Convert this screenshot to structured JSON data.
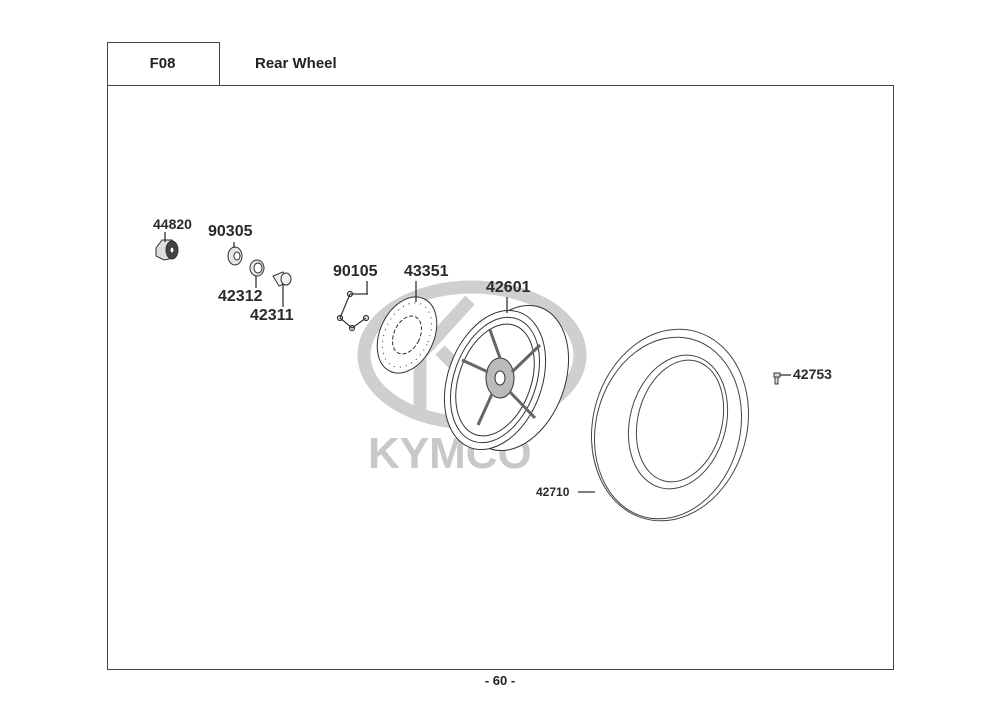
{
  "header": {
    "section_code": "F08",
    "title": "Rear Wheel"
  },
  "watermark": {
    "brand": "KYMCO",
    "color": "#c8c8c8"
  },
  "parts": [
    {
      "number": "44820"
    },
    {
      "number": "90305"
    },
    {
      "number": "42312"
    },
    {
      "number": "42311"
    },
    {
      "number": "90105"
    },
    {
      "number": "43351"
    },
    {
      "number": "42601"
    },
    {
      "number": "42753"
    },
    {
      "number": "42710"
    }
  ],
  "footer": {
    "page_number": "- 60 -"
  }
}
